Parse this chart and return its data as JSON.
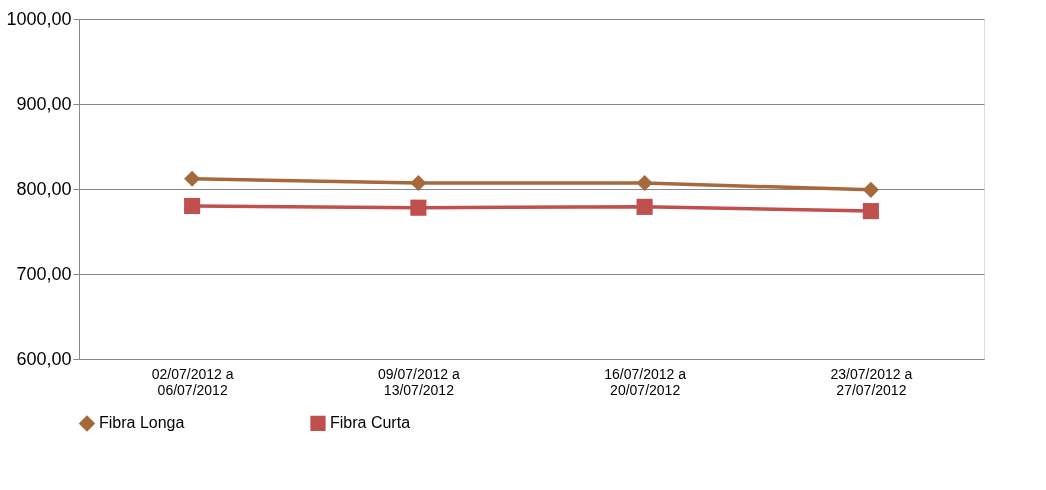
{
  "chart_data": {
    "type": "line",
    "categories": [
      "02/07/2012 a\n06/07/2012",
      "09/07/2012 a\n13/07/2012",
      "16/07/2012 a\n20/07/2012",
      "23/07/2012 a\n27/07/2012"
    ],
    "series": [
      {
        "name": "Fibra Longa",
        "color": "#a5693b",
        "marker": "diamond",
        "values": [
          812,
          807,
          807,
          799
        ]
      },
      {
        "name": "Fibra Curta",
        "color": "#c0504d",
        "marker": "square",
        "values": [
          780,
          778,
          779,
          774
        ]
      }
    ],
    "ylim": [
      600,
      1000
    ],
    "yticks": [
      {
        "value": 600,
        "label": "600,00"
      },
      {
        "value": 700,
        "label": "700,00"
      },
      {
        "value": 800,
        "label": "800,00"
      },
      {
        "value": 900,
        "label": "900,00"
      },
      {
        "value": 1000,
        "label": "1000,00"
      }
    ],
    "grid": "y",
    "legend": "bottom",
    "line_style": "solid"
  }
}
